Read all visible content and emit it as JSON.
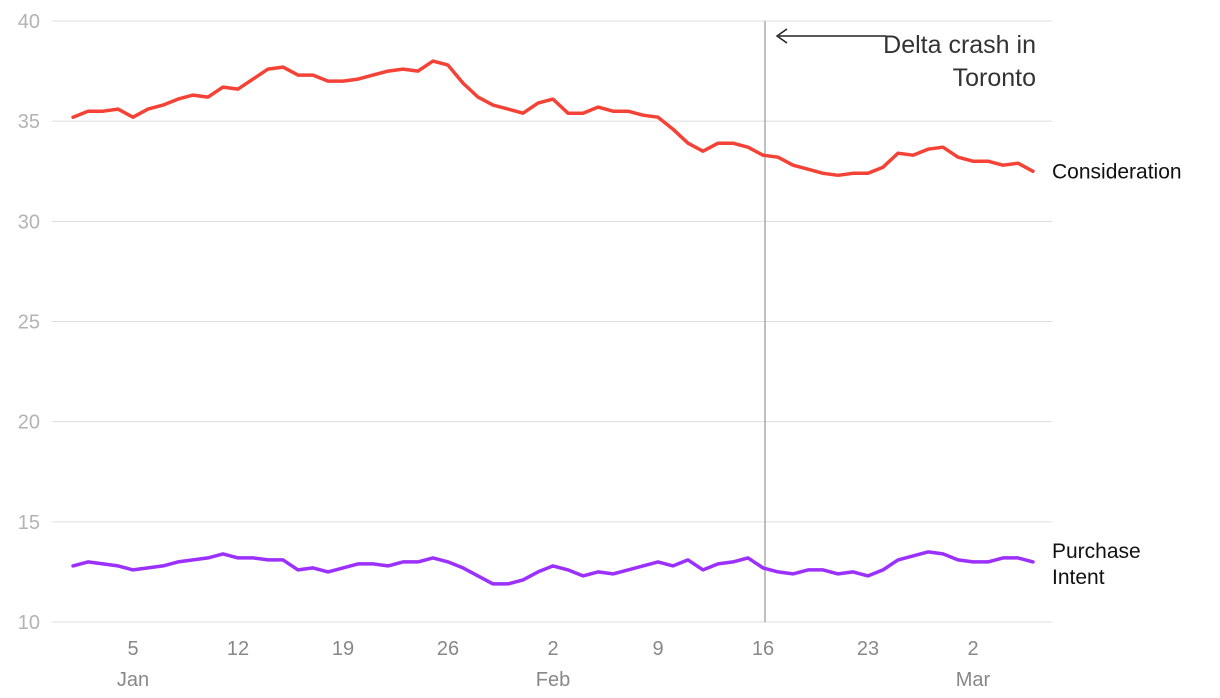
{
  "chart_data": {
    "type": "line",
    "title": "",
    "xlabel": "",
    "ylabel": "",
    "ylim": [
      10,
      40
    ],
    "yticks": [
      "10",
      "15",
      "20",
      "25",
      "30",
      "35",
      "40"
    ],
    "grid": true,
    "x_start": "Jan 1",
    "xticks": [
      {
        "day": 5,
        "label": "5",
        "month": "Jan"
      },
      {
        "day": 12,
        "label": "12",
        "month": ""
      },
      {
        "day": 19,
        "label": "19",
        "month": ""
      },
      {
        "day": 26,
        "label": "26",
        "month": ""
      },
      {
        "day": 33,
        "label": "2",
        "month": "Feb"
      },
      {
        "day": 40,
        "label": "9",
        "month": ""
      },
      {
        "day": 47,
        "label": "16",
        "month": ""
      },
      {
        "day": 54,
        "label": "23",
        "month": ""
      },
      {
        "day": 61,
        "label": "2",
        "month": "Mar"
      }
    ],
    "series": [
      {
        "name": "Consideration",
        "color": "#f44336",
        "values": [
          35.2,
          35.5,
          35.5,
          35.6,
          35.2,
          35.6,
          35.8,
          36.1,
          36.3,
          36.2,
          36.7,
          36.6,
          37.1,
          37.6,
          37.7,
          37.3,
          37.3,
          37.0,
          37.0,
          37.1,
          37.3,
          37.5,
          37.6,
          37.5,
          38.0,
          37.8,
          36.9,
          36.2,
          35.8,
          35.6,
          35.4,
          35.9,
          36.1,
          35.4,
          35.4,
          35.7,
          35.5,
          35.5,
          35.3,
          35.2,
          34.6,
          33.9,
          33.5,
          33.9,
          33.9,
          33.7,
          33.3,
          33.2,
          32.8,
          32.6,
          32.4,
          32.3,
          32.4,
          32.4,
          32.7,
          33.4,
          33.3,
          33.6,
          33.7,
          33.2,
          33.0,
          33.0,
          32.8,
          32.9,
          32.5
        ]
      },
      {
        "name": "Purchase Intent",
        "label_lines": [
          "Purchase",
          "Intent"
        ],
        "color": "#9b30ff",
        "values": [
          12.8,
          13.0,
          12.9,
          12.8,
          12.6,
          12.7,
          12.8,
          13.0,
          13.1,
          13.2,
          13.4,
          13.2,
          13.2,
          13.1,
          13.1,
          12.6,
          12.7,
          12.5,
          12.7,
          12.9,
          12.9,
          12.8,
          13.0,
          13.0,
          13.2,
          13.0,
          12.7,
          12.3,
          11.9,
          11.9,
          12.1,
          12.5,
          12.8,
          12.6,
          12.3,
          12.5,
          12.4,
          12.6,
          12.8,
          13.0,
          12.8,
          13.1,
          12.6,
          12.9,
          13.0,
          13.2,
          12.7,
          12.5,
          12.4,
          12.6,
          12.6,
          12.4,
          12.5,
          12.3,
          12.6,
          13.1,
          13.3,
          13.5,
          13.4,
          13.1,
          13.0,
          13.0,
          13.2,
          13.2,
          13.0
        ]
      }
    ],
    "annotation": {
      "text_lines": [
        "Delta crash in",
        "Toronto"
      ],
      "day": 48
    }
  }
}
